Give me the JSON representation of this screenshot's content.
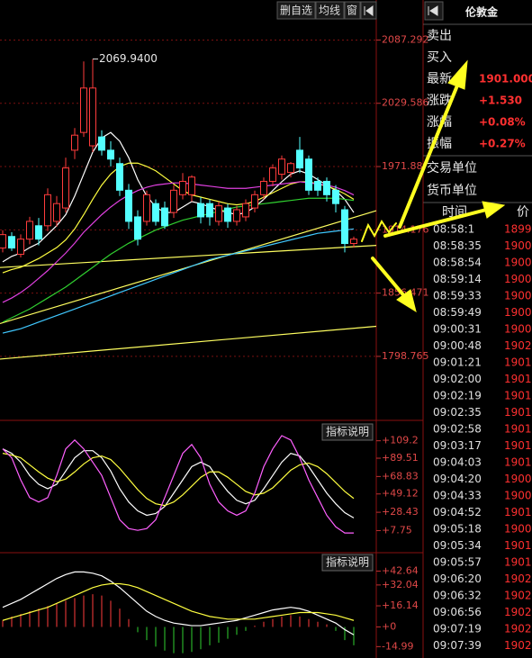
{
  "toolbar": {
    "buttons": [
      "删自选",
      "均线",
      "窗"
    ]
  },
  "chart_data": [
    {
      "type": "candlestick",
      "open": [
        1897.6,
        1908.1,
        1891.9,
        1905.7,
        1917.9,
        1917.9,
        1921.9,
        1934.1,
        1986.8,
        2003.0,
        1990.8,
        1998.9,
        1986.8,
        1974.6,
        1950.3,
        1926.0,
        1921.9,
        1938.1,
        1934.1,
        1930.0,
        1946.2,
        1946.2,
        1938.1,
        1938.1,
        1921.9,
        1934.1,
        1921.9,
        1926.0,
        1934.1,
        1946.2,
        1958.4,
        1964.9,
        1966.5,
        1986.8,
        1978.7,
        1958.4,
        1958.4,
        1950.3,
        1932.5,
        1901.7
      ],
      "high": [
        1913.8,
        1912.0,
        1910.0,
        1926.0,
        1925.0,
        1952.0,
        1945.0,
        1980.0,
        2007.0,
        2067.8,
        2069.94,
        2005.0,
        1995.0,
        1980.0,
        1956.0,
        1932.0,
        1950.0,
        1942.0,
        1940.0,
        1955.0,
        1966.0,
        1964.0,
        1944.0,
        1942.0,
        1940.0,
        1938.0,
        1936.0,
        1942.0,
        1950.0,
        1962.0,
        1974.0,
        1982.0,
        1976.0,
        1998.9,
        1982.0,
        1962.0,
        1962.0,
        1955.0,
        1936.0,
        1908.0
      ],
      "low": [
        1893.6,
        1895.0,
        1889.0,
        1901.0,
        1900.0,
        1913.0,
        1917.0,
        1930.0,
        1978.7,
        1998.9,
        1985.0,
        1982.0,
        1972.0,
        1945.0,
        1915.0,
        1900.0,
        1918.0,
        1918.0,
        1915.0,
        1925.0,
        1942.0,
        1940.0,
        1920.0,
        1918.0,
        1918.0,
        1916.0,
        1918.0,
        1922.0,
        1930.0,
        1942.0,
        1954.0,
        1960.0,
        1962.0,
        1966.0,
        1946.0,
        1945.0,
        1940.0,
        1930.0,
        1893.6,
        1898.0
      ],
      "close": [
        1909.8,
        1897.6,
        1905.7,
        1921.9,
        1905.7,
        1946.2,
        1938.1,
        1970.6,
        2000.5,
        2043.5,
        2043.5,
        1986.8,
        1978.7,
        1950.3,
        1921.9,
        1905.7,
        1946.2,
        1921.9,
        1917.9,
        1950.3,
        1958.4,
        1962.3,
        1926.0,
        1926.0,
        1936.1,
        1921.9,
        1932.5,
        1938.1,
        1946.2,
        1958.4,
        1970.6,
        1978.7,
        1974.6,
        1970.6,
        1950.3,
        1950.3,
        1946.2,
        1938.1,
        1901.7,
        1905.7
      ],
      "up_color": "#ff3c3c",
      "down_color": "#54ffff",
      "series": [
        {
          "color": "#ffffff",
          "values": [
            1885,
            1890,
            1893,
            1898,
            1902,
            1910,
            1918,
            1928,
            1945,
            1965,
            1985,
            1998,
            2003,
            1995,
            1980,
            1960,
            1945,
            1935,
            1930,
            1930,
            1935,
            1940,
            1938,
            1935,
            1932,
            1930,
            1928,
            1930,
            1935,
            1942,
            1950,
            1958,
            1965,
            1968,
            1965,
            1960,
            1955,
            1950,
            1942,
            1930
          ]
        },
        {
          "color": "#ffff40",
          "values": [
            1875,
            1878,
            1880,
            1884,
            1888,
            1893,
            1898,
            1905,
            1915,
            1928,
            1942,
            1955,
            1965,
            1972,
            1975,
            1975,
            1972,
            1968,
            1962,
            1956,
            1950,
            1946,
            1944,
            1942,
            1940,
            1938,
            1937,
            1938,
            1940,
            1944,
            1948,
            1952,
            1956,
            1958,
            1958,
            1956,
            1954,
            1951,
            1947,
            1942
          ]
        },
        {
          "color": "#e040e0",
          "values": [
            1848,
            1852,
            1857,
            1863,
            1870,
            1877,
            1885,
            1893,
            1902,
            1912,
            1920,
            1928,
            1935,
            1941,
            1946,
            1950,
            1953,
            1955,
            1956,
            1957,
            1957,
            1956,
            1955,
            1954,
            1953,
            1952,
            1952,
            1952,
            1953,
            1954,
            1955,
            1956,
            1957,
            1958,
            1957,
            1956,
            1955,
            1953,
            1950,
            1946
          ]
        },
        {
          "color": "#30d030",
          "values": [
            1830,
            1834,
            1838,
            1842,
            1847,
            1852,
            1857,
            1862,
            1868,
            1874,
            1880,
            1886,
            1892,
            1897,
            1902,
            1906,
            1910,
            1914,
            1917,
            1920,
            1923,
            1925,
            1927,
            1929,
            1931,
            1933,
            1935,
            1936,
            1937,
            1938,
            1939,
            1940,
            1941,
            1942,
            1943,
            1943,
            1943,
            1943,
            1942,
            1941
          ]
        },
        {
          "color": "#40c8ff",
          "values": [
            1820,
            1822,
            1824,
            1827,
            1830,
            1833,
            1836,
            1839,
            1842,
            1845,
            1848,
            1851,
            1854,
            1857,
            1860,
            1863,
            1866,
            1869,
            1872,
            1875,
            1878,
            1881,
            1884,
            1887,
            1889,
            1891,
            1893,
            1895,
            1897,
            1899,
            1901,
            1903,
            1905,
            1907,
            1909,
            1911,
            1912,
            1913,
            1914,
            1915
          ]
        }
      ],
      "trendlines": [
        {
          "color": "#ffff60",
          "values": [
            1879.8,
            1900.0
          ]
        },
        {
          "color": "#ffff60",
          "values": [
            1828.7,
            1931.6
          ]
        },
        {
          "color": "#ffff60",
          "values": [
            1796.3,
            1826.2
          ]
        }
      ],
      "max_label": {
        "value": 2069.94,
        "label": "2069.9400"
      },
      "ylim": [
        1743.7,
        2120.5
      ],
      "yticks": [
        1798.765,
        1856.471,
        1914.176,
        1971.88,
        2029.586,
        2087.292
      ],
      "grid": true
    },
    {
      "type": "line",
      "title": "指标说明",
      "series": [
        {
          "color": "#ffffff",
          "values": [
            100,
            95,
            85,
            70,
            60,
            55,
            60,
            75,
            90,
            98,
            98,
            90,
            75,
            55,
            40,
            30,
            25,
            27,
            35,
            50,
            65,
            80,
            85,
            80,
            65,
            52,
            42,
            38,
            42,
            55,
            70,
            85,
            95,
            92,
            80,
            65,
            50,
            38,
            28,
            22
          ]
        },
        {
          "color": "#ffff40",
          "values": [
            95,
            93,
            90,
            82,
            74,
            67,
            63,
            66,
            74,
            83,
            90,
            92,
            88,
            78,
            66,
            54,
            44,
            38,
            36,
            40,
            48,
            58,
            68,
            74,
            74,
            68,
            60,
            52,
            48,
            50,
            56,
            66,
            76,
            82,
            84,
            80,
            72,
            62,
            52,
            44
          ]
        },
        {
          "color": "#ff60ff",
          "values": [
            100,
            90,
            65,
            45,
            40,
            45,
            70,
            100,
            110,
            100,
            85,
            70,
            45,
            20,
            10,
            8,
            10,
            20,
            45,
            70,
            95,
            105,
            90,
            60,
            40,
            30,
            25,
            30,
            50,
            80,
            100,
            115,
            110,
            90,
            65,
            45,
            25,
            12,
            5,
            5
          ]
        }
      ],
      "ylim": [
        -15.2,
        129.2
      ],
      "yticks": [
        {
          "value": 7.75,
          "label": "+7.75"
        },
        {
          "value": 28.43,
          "label": "+28.43"
        },
        {
          "value": 49.12,
          "label": "+49.12"
        },
        {
          "value": 68.83,
          "label": "+68.83"
        },
        {
          "value": 89.51,
          "label": "+89.51"
        },
        {
          "value": 109.2,
          "label": "+109.2"
        }
      ]
    },
    {
      "type": "macd",
      "title": "指标说明",
      "values": [
        5,
        8,
        10,
        12,
        14,
        16,
        18,
        20,
        22,
        24,
        25,
        24,
        20,
        14,
        6,
        -4,
        -10,
        -15,
        -18,
        -20,
        -20,
        -19,
        -17,
        -14,
        -12,
        -9,
        -6,
        -3,
        1,
        4,
        6,
        8,
        9,
        8,
        6,
        4,
        2,
        -3,
        -10,
        -14
      ],
      "up_color": "#ff3c3c",
      "down_color": "#30d030",
      "series": [
        {
          "color": "#ffffff",
          "values": [
            15,
            18,
            21,
            25,
            29,
            33,
            37,
            40,
            42,
            42,
            41,
            39,
            35,
            30,
            24,
            18,
            12,
            8,
            5,
            3,
            2,
            1,
            1,
            2,
            3,
            4,
            5,
            7,
            9,
            11,
            13,
            14,
            15,
            14,
            12,
            9,
            6,
            3,
            -2,
            -6
          ]
        },
        {
          "color": "#ffff40",
          "values": [
            5,
            7,
            9,
            11,
            13,
            15,
            18,
            21,
            24,
            27,
            30,
            32,
            33,
            33,
            32,
            30,
            27,
            24,
            21,
            18,
            15,
            12,
            10,
            8,
            7,
            6,
            6,
            6,
            6,
            7,
            8,
            9,
            10,
            11,
            11,
            11,
            10,
            9,
            7,
            5
          ]
        }
      ],
      "ylim": [
        -22.3,
        55.3
      ],
      "yticks": [
        {
          "value": -14.99,
          "label": "-14.99"
        },
        0,
        {
          "value": 0,
          "label": "+0"
        },
        {
          "value": 16.14,
          "label": "+16.14"
        },
        {
          "value": 32.04,
          "label": "+32.04"
        },
        {
          "value": 42.64,
          "label": "+42.64"
        }
      ]
    }
  ],
  "quote_panel": {
    "title": "伦敦金",
    "rows": [
      {
        "label": "卖出"
      },
      {
        "label": "买入"
      },
      {
        "label": "最新",
        "value": "1901.000"
      },
      {
        "label": "涨跌",
        "value": "+1.530"
      },
      {
        "label": "涨幅",
        "value": "+0.08%"
      },
      {
        "label": "振幅",
        "value": "+0.27%"
      }
    ],
    "units": [
      "交易单位",
      "货币单位"
    ]
  },
  "tick_table": {
    "header": [
      "时间",
      "价"
    ],
    "rows": [
      [
        "08:58:1",
        "1899."
      ],
      [
        "08:58:35",
        "1900."
      ],
      [
        "08:58:54",
        "1900."
      ],
      [
        "08:59:14",
        "1900."
      ],
      [
        "08:59:33",
        "1900."
      ],
      [
        "08:59:49",
        "1900."
      ],
      [
        "09:00:31",
        "1900."
      ],
      [
        "09:00:48",
        "1902."
      ],
      [
        "09:01:21",
        "1901."
      ],
      [
        "09:02:00",
        "1901."
      ],
      [
        "09:02:19",
        "1901."
      ],
      [
        "09:02:35",
        "1901."
      ],
      [
        "09:02:58",
        "1901."
      ],
      [
        "09:03:17",
        "1901."
      ],
      [
        "09:04:03",
        "1901."
      ],
      [
        "09:04:20",
        "1900."
      ],
      [
        "09:04:33",
        "1900."
      ],
      [
        "09:04:52",
        "1901."
      ],
      [
        "09:05:18",
        "1900."
      ],
      [
        "09:05:34",
        "1901."
      ],
      [
        "09:05:57",
        "1901."
      ],
      [
        "09:06:20",
        "1902."
      ],
      [
        "09:06:32",
        "1902"
      ],
      [
        "09:06:56",
        "1902."
      ],
      [
        "09:07:19",
        "1902."
      ],
      [
        "09:07:39",
        "1902."
      ]
    ]
  }
}
